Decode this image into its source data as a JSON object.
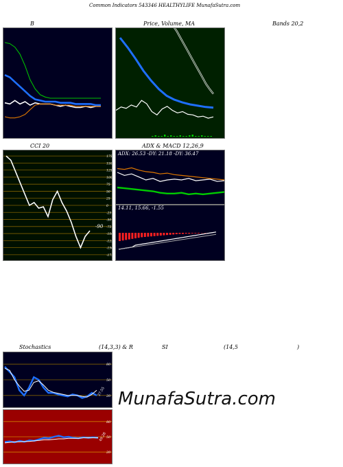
{
  "header": {
    "title": "Common Indicators 543346 HEALTHYLIFE MunafaSutra.com",
    "label_b": "B",
    "label_price": "Price, Volume, MA",
    "label_bands": "Bands 20,2",
    "label_cci": "CCI 20",
    "label_adx": "ADX & MACD 12,26,9",
    "label_stoch": "Stochastics",
    "label_stoch_params": "(14,3,3) & R",
    "label_rsi": "SI",
    "label_rsi_params": "(14,5",
    "label_paren": ")"
  },
  "watermark": "MunafaSutra.com",
  "colors": {
    "panel_bg": "#000020",
    "green_bg": "#002000",
    "olive_bg": "#001000",
    "red_bg": "#9a0000",
    "blue": "#1e6fff",
    "orange": "#e07800",
    "green": "#00cc00"
  },
  "chart_data": [
    {
      "type": "line",
      "name": "bollinger",
      "title": "B",
      "series": [
        {
          "name": "upper",
          "color": "#00c000",
          "values": [
            100,
            99,
            96,
            90,
            80,
            68,
            60,
            55,
            53,
            52,
            52,
            52,
            52,
            52,
            52,
            52,
            52,
            52,
            52,
            52
          ]
        },
        {
          "name": "price",
          "color": "#ffffff",
          "values": [
            48,
            47,
            50,
            47,
            49,
            46,
            48,
            47,
            47,
            47,
            46,
            45,
            46,
            45,
            44,
            44,
            45,
            44,
            45,
            45
          ]
        },
        {
          "name": "middle",
          "color": "#1e6fff",
          "values": [
            72,
            70,
            66,
            62,
            58,
            54,
            51,
            50,
            49,
            49,
            49,
            48,
            48,
            48,
            47,
            47,
            47,
            47,
            46,
            46
          ]
        },
        {
          "name": "lower",
          "color": "#e07800",
          "values": [
            36,
            35,
            35,
            36,
            38,
            42,
            46,
            47,
            47,
            47,
            46,
            46,
            46,
            46,
            45,
            45,
            45,
            45,
            45,
            45
          ]
        }
      ]
    },
    {
      "type": "line",
      "name": "price-ma",
      "title": "Price, Volume, MA",
      "series": [
        {
          "name": "ma-long",
          "color": "#ffffff",
          "values": [
            175,
            168,
            160,
            150,
            140,
            130,
            120,
            110,
            100,
            90,
            80,
            72,
            65
          ]
        },
        {
          "name": "ma-fast",
          "color": "#1e6fff",
          "values": [
            150,
            135,
            118,
            100,
            85,
            72,
            62,
            56,
            52,
            49,
            47,
            45,
            44
          ]
        },
        {
          "name": "price",
          "color": "#ffffff",
          "values": [
            40,
            45,
            43,
            48,
            45,
            55,
            50,
            38,
            33,
            42,
            46,
            40,
            36,
            38,
            34,
            33,
            30,
            31,
            28,
            30
          ]
        },
        {
          "name": "volume",
          "color": "#00cc00",
          "values": [
            1,
            2,
            1,
            1,
            3,
            1,
            2,
            1,
            1,
            2,
            1,
            1,
            2,
            3,
            1,
            1,
            2,
            1,
            1,
            1
          ]
        }
      ]
    },
    {
      "type": "line",
      "name": "cci",
      "title": "CCI 20",
      "value_label": "-90",
      "y_ticks": [
        175,
        150,
        125,
        100,
        75,
        50,
        25,
        0,
        -25,
        -50,
        -75,
        -100,
        -125,
        -150,
        -175
      ],
      "ylim": [
        -185,
        185
      ],
      "values": [
        175,
        160,
        120,
        80,
        40,
        0,
        10,
        -10,
        -5,
        -40,
        20,
        50,
        10,
        -20,
        -60,
        -110,
        -150,
        -110,
        -90
      ]
    },
    {
      "type": "line",
      "name": "adx",
      "title": "ADX: 26.53 -DY: 21.18 -DY: 36.47",
      "series": [
        {
          "name": "adx",
          "color": "#ffffff",
          "values": [
            40,
            36,
            38,
            34,
            30,
            32,
            28,
            30,
            31,
            30,
            32,
            29,
            30,
            31,
            28,
            29
          ]
        },
        {
          "name": "plus-di",
          "color": "#e07800",
          "values": [
            45,
            44,
            46,
            43,
            41,
            40,
            38,
            39,
            37,
            36,
            35,
            34,
            33,
            32,
            31,
            30
          ]
        },
        {
          "name": "minus-di",
          "color": "#00cc00",
          "values": [
            20,
            19,
            18,
            17,
            16,
            15,
            13,
            12,
            12,
            13,
            11,
            12,
            11,
            12,
            13,
            14
          ]
        }
      ]
    },
    {
      "type": "bar",
      "name": "macd",
      "title": "14.11, 15.66, -1.55",
      "values": [
        -1.5,
        -1.4,
        -1.3,
        -1.2,
        -1.1,
        -1.0,
        -0.9,
        -0.8,
        -0.75,
        -0.7,
        -0.65,
        -0.6,
        -0.55,
        -0.5,
        -0.45,
        -0.4,
        -0.35,
        -0.3,
        -0.25,
        -0.2,
        -0.2,
        -0.15,
        -0.15,
        -0.1,
        -0.1,
        -0.1,
        -0.05,
        -0.05,
        -0.05,
        -0.05
      ]
    },
    {
      "type": "line",
      "name": "stochastics",
      "title": "Stochastics (14,3,3)",
      "value_label": "27.55",
      "y_ticks": [
        80,
        50,
        20
      ],
      "series": [
        {
          "name": "k",
          "color": "#1e6fff",
          "values": [
            75,
            65,
            55,
            30,
            20,
            35,
            55,
            50,
            35,
            25,
            25,
            22,
            20,
            18,
            22,
            20,
            15,
            18,
            25,
            20
          ]
        },
        {
          "name": "d",
          "color": "#ffffff",
          "values": [
            72,
            68,
            50,
            38,
            28,
            30,
            45,
            48,
            40,
            30,
            26,
            24,
            22,
            20,
            20,
            20,
            18,
            17,
            22,
            30
          ]
        }
      ]
    },
    {
      "type": "line",
      "name": "rsi",
      "title": "RSI (14,5)",
      "value_label": "49.28",
      "y_ticks": [
        80,
        50,
        20
      ],
      "series": [
        {
          "name": "rsi",
          "color": "#1e6fff",
          "values": [
            40,
            41,
            39,
            42,
            40,
            43,
            42,
            45,
            48,
            47,
            50,
            52,
            49,
            50,
            48,
            47,
            49,
            48,
            49,
            48
          ]
        },
        {
          "name": "rsi-avg",
          "color": "#ffffff",
          "values": [
            38,
            39,
            40,
            40,
            41,
            41,
            42,
            43,
            44,
            44,
            45,
            46,
            46,
            47,
            47,
            47,
            48,
            48,
            48,
            48
          ]
        }
      ]
    }
  ]
}
